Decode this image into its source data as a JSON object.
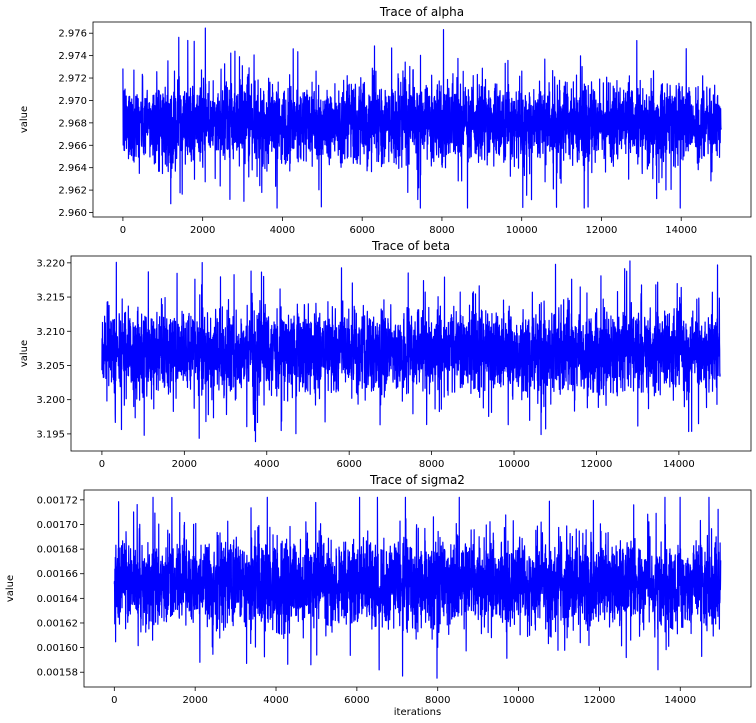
{
  "chart_data": [
    {
      "type": "line",
      "title": "Trace of alpha",
      "xlabel": "",
      "ylabel": "value",
      "xlim": [
        -750,
        15750
      ],
      "ylim": [
        2.9596,
        2.977
      ],
      "xticks": [
        0,
        2000,
        4000,
        6000,
        8000,
        10000,
        12000,
        14000
      ],
      "xtick_labels": [
        "0",
        "2000",
        "4000",
        "6000",
        "8000",
        "10000",
        "12000",
        "14000"
      ],
      "yticks": [
        2.96,
        2.962,
        2.964,
        2.966,
        2.968,
        2.97,
        2.972,
        2.974,
        2.976
      ],
      "ytick_labels": [
        "2.960",
        "2.962",
        "2.964",
        "2.966",
        "2.968",
        "2.970",
        "2.972",
        "2.974",
        "2.976"
      ],
      "grid": false,
      "series": [
        {
          "color": "#0000ff",
          "n_iterations": 15000,
          "mean": 2.968,
          "band_low": 2.9645,
          "band_high": 2.9715,
          "observed_min": 2.9604,
          "observed_max": 2.9765
        }
      ]
    },
    {
      "type": "line",
      "title": "Trace of beta",
      "xlabel": "",
      "ylabel": "value",
      "xlim": [
        -750,
        15750
      ],
      "ylim": [
        3.1925,
        3.221
      ],
      "xticks": [
        0,
        2000,
        4000,
        6000,
        8000,
        10000,
        12000,
        14000
      ],
      "xtick_labels": [
        "0",
        "2000",
        "4000",
        "6000",
        "8000",
        "10000",
        "12000",
        "14000"
      ],
      "yticks": [
        3.195,
        3.2,
        3.205,
        3.21,
        3.215,
        3.22
      ],
      "ytick_labels": [
        "3.195",
        "3.200",
        "3.205",
        "3.210",
        "3.215",
        "3.220"
      ],
      "grid": false,
      "series": [
        {
          "color": "#0000ff",
          "n_iterations": 15000,
          "mean": 3.207,
          "band_low": 3.2005,
          "band_high": 3.2125,
          "observed_min": 3.1937,
          "observed_max": 3.2203
        }
      ]
    },
    {
      "type": "line",
      "title": "Trace of sigma2",
      "xlabel": "iterations",
      "ylabel": "value",
      "xlim": [
        -750,
        15750
      ],
      "ylim": [
        0.001568,
        0.001728
      ],
      "xticks": [
        0,
        2000,
        4000,
        6000,
        8000,
        10000,
        12000,
        14000
      ],
      "xtick_labels": [
        "0",
        "2000",
        "4000",
        "6000",
        "8000",
        "10000",
        "12000",
        "14000"
      ],
      "yticks": [
        0.00158,
        0.0016,
        0.00162,
        0.00164,
        0.00166,
        0.00168,
        0.0017,
        0.00172
      ],
      "ytick_labels": [
        "0.00158",
        "0.00160",
        "0.00162",
        "0.00164",
        "0.00166",
        "0.00168",
        "0.00170",
        "0.00172"
      ],
      "grid": false,
      "series": [
        {
          "color": "#0000ff",
          "n_iterations": 15000,
          "mean": 0.001652,
          "band_low": 0.001618,
          "band_high": 0.001688,
          "observed_min": 0.001574,
          "observed_max": 0.001722
        }
      ]
    }
  ]
}
